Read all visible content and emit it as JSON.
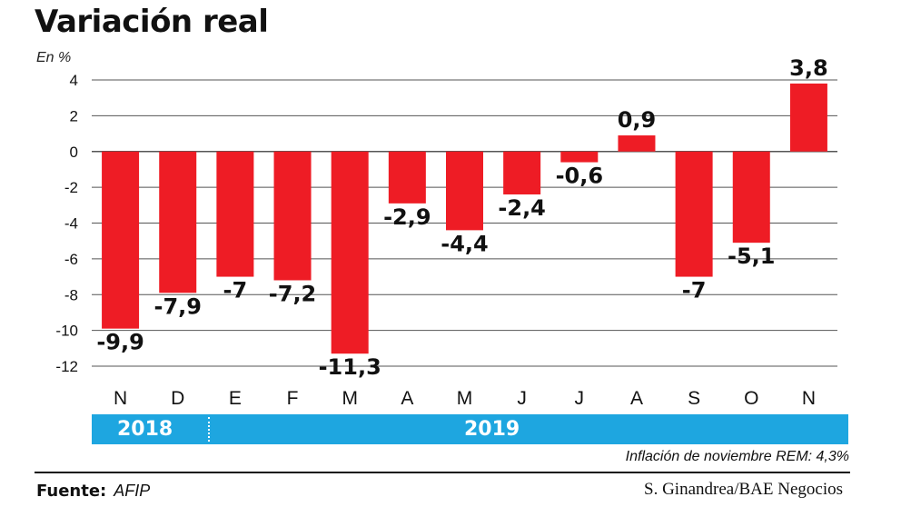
{
  "title": "Variación real",
  "unit_label": "En %",
  "years": [
    "2018",
    "2019"
  ],
  "note": "Inflación de noviembre REM: 4,3%",
  "source_label": "Fuente:",
  "source_value": "AFIP",
  "credit": "S. Ginandrea/BAE Negocios",
  "colors": {
    "bar": "#ee1c25",
    "year_band": "#1ea6e0",
    "grid": "#555555"
  },
  "chart_data": {
    "type": "bar",
    "title": "Variación real",
    "ylabel": "En %",
    "xlabel": "",
    "ylim": [
      -12,
      4
    ],
    "yticks": [
      4,
      2,
      0,
      -2,
      -4,
      -6,
      -8,
      -10,
      -12
    ],
    "grid": true,
    "categories": [
      "N",
      "D",
      "E",
      "F",
      "M",
      "A",
      "M",
      "J",
      "J",
      "A",
      "S",
      "O",
      "N"
    ],
    "values": [
      -9.9,
      -7.9,
      -7,
      -7.2,
      -11.3,
      -2.9,
      -4.4,
      -2.4,
      -0.6,
      0.9,
      -7,
      -5.1,
      3.8
    ],
    "value_labels": [
      "-9,9",
      "-7,9",
      "-7",
      "-7,2",
      "-11,3",
      "-2,9",
      "-4,4",
      "-2,4",
      "-0,6",
      "0,9",
      "-7",
      "-5,1",
      "3,8"
    ]
  }
}
